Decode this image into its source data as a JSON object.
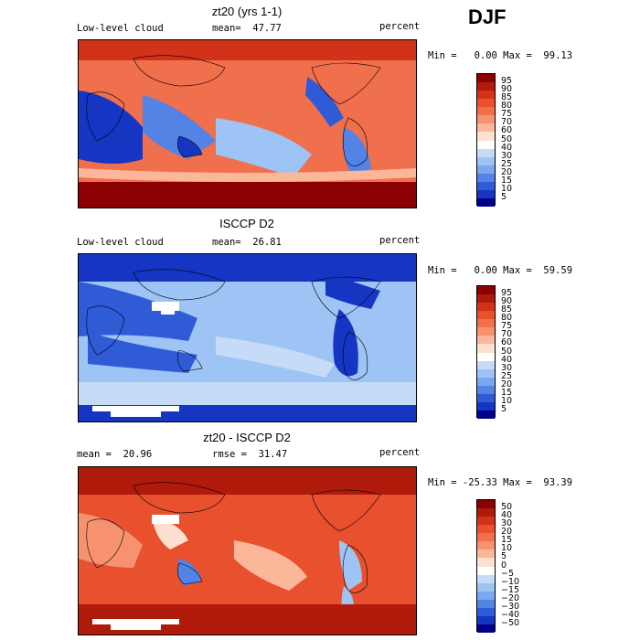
{
  "season": "DJF",
  "chart_data": [
    {
      "type": "heatmap",
      "title": "zt20 (yrs 1-1)",
      "left_label": "Low-level cloud",
      "stat_text": "mean=  47.77",
      "units": "percent",
      "minmax_text": "Min =   0.00 Max =  99.13",
      "colorbar_ticks": [
        "95",
        "90",
        "85",
        "80",
        "75",
        "70",
        "60",
        "50",
        "40",
        "30",
        "25",
        "20",
        "15",
        "10",
        "5"
      ],
      "colorbar_colors": [
        "#8b0000",
        "#b01a0a",
        "#d23218",
        "#e8502e",
        "#f06f4c",
        "#f79271",
        "#fcb69a",
        "#fde0d0",
        "#ffffff",
        "#c6dbf7",
        "#9ec3f5",
        "#7aa7ef",
        "#5283e5",
        "#2f5bd6",
        "#1535c2",
        "#00008b"
      ]
    },
    {
      "type": "heatmap",
      "title": "ISCCP D2",
      "left_label": "Low-level cloud",
      "stat_text": "mean=  26.81",
      "units": "percent",
      "minmax_text": "Min =   0.00 Max =  59.59",
      "colorbar_ticks": [
        "95",
        "90",
        "85",
        "80",
        "75",
        "70",
        "60",
        "50",
        "40",
        "30",
        "25",
        "20",
        "15",
        "10",
        "5"
      ],
      "colorbar_colors": [
        "#8b0000",
        "#b01a0a",
        "#d23218",
        "#e8502e",
        "#f06f4c",
        "#f79271",
        "#fcb69a",
        "#fde0d0",
        "#ffffff",
        "#c6dbf7",
        "#9ec3f5",
        "#7aa7ef",
        "#5283e5",
        "#2f5bd6",
        "#1535c2",
        "#00008b"
      ]
    },
    {
      "type": "heatmap",
      "title": "zt20 - ISCCP D2",
      "left_label": "mean =  20.96",
      "stat_text": "rmse =  31.47",
      "units": "percent",
      "minmax_text": "Min = -25.33 Max =  93.39",
      "colorbar_ticks": [
        "50",
        "40",
        "30",
        "20",
        "15",
        "10",
        "5",
        "0",
        "−5",
        "−10",
        "−15",
        "−20",
        "−30",
        "−40",
        "−50"
      ],
      "colorbar_colors": [
        "#8b0000",
        "#b01a0a",
        "#d23218",
        "#e8502e",
        "#f06f4c",
        "#f79271",
        "#fcb69a",
        "#fde0d0",
        "#ffffff",
        "#c6dbf7",
        "#9ec3f5",
        "#7aa7ef",
        "#5283e5",
        "#2f5bd6",
        "#1535c2",
        "#00008b"
      ]
    }
  ]
}
